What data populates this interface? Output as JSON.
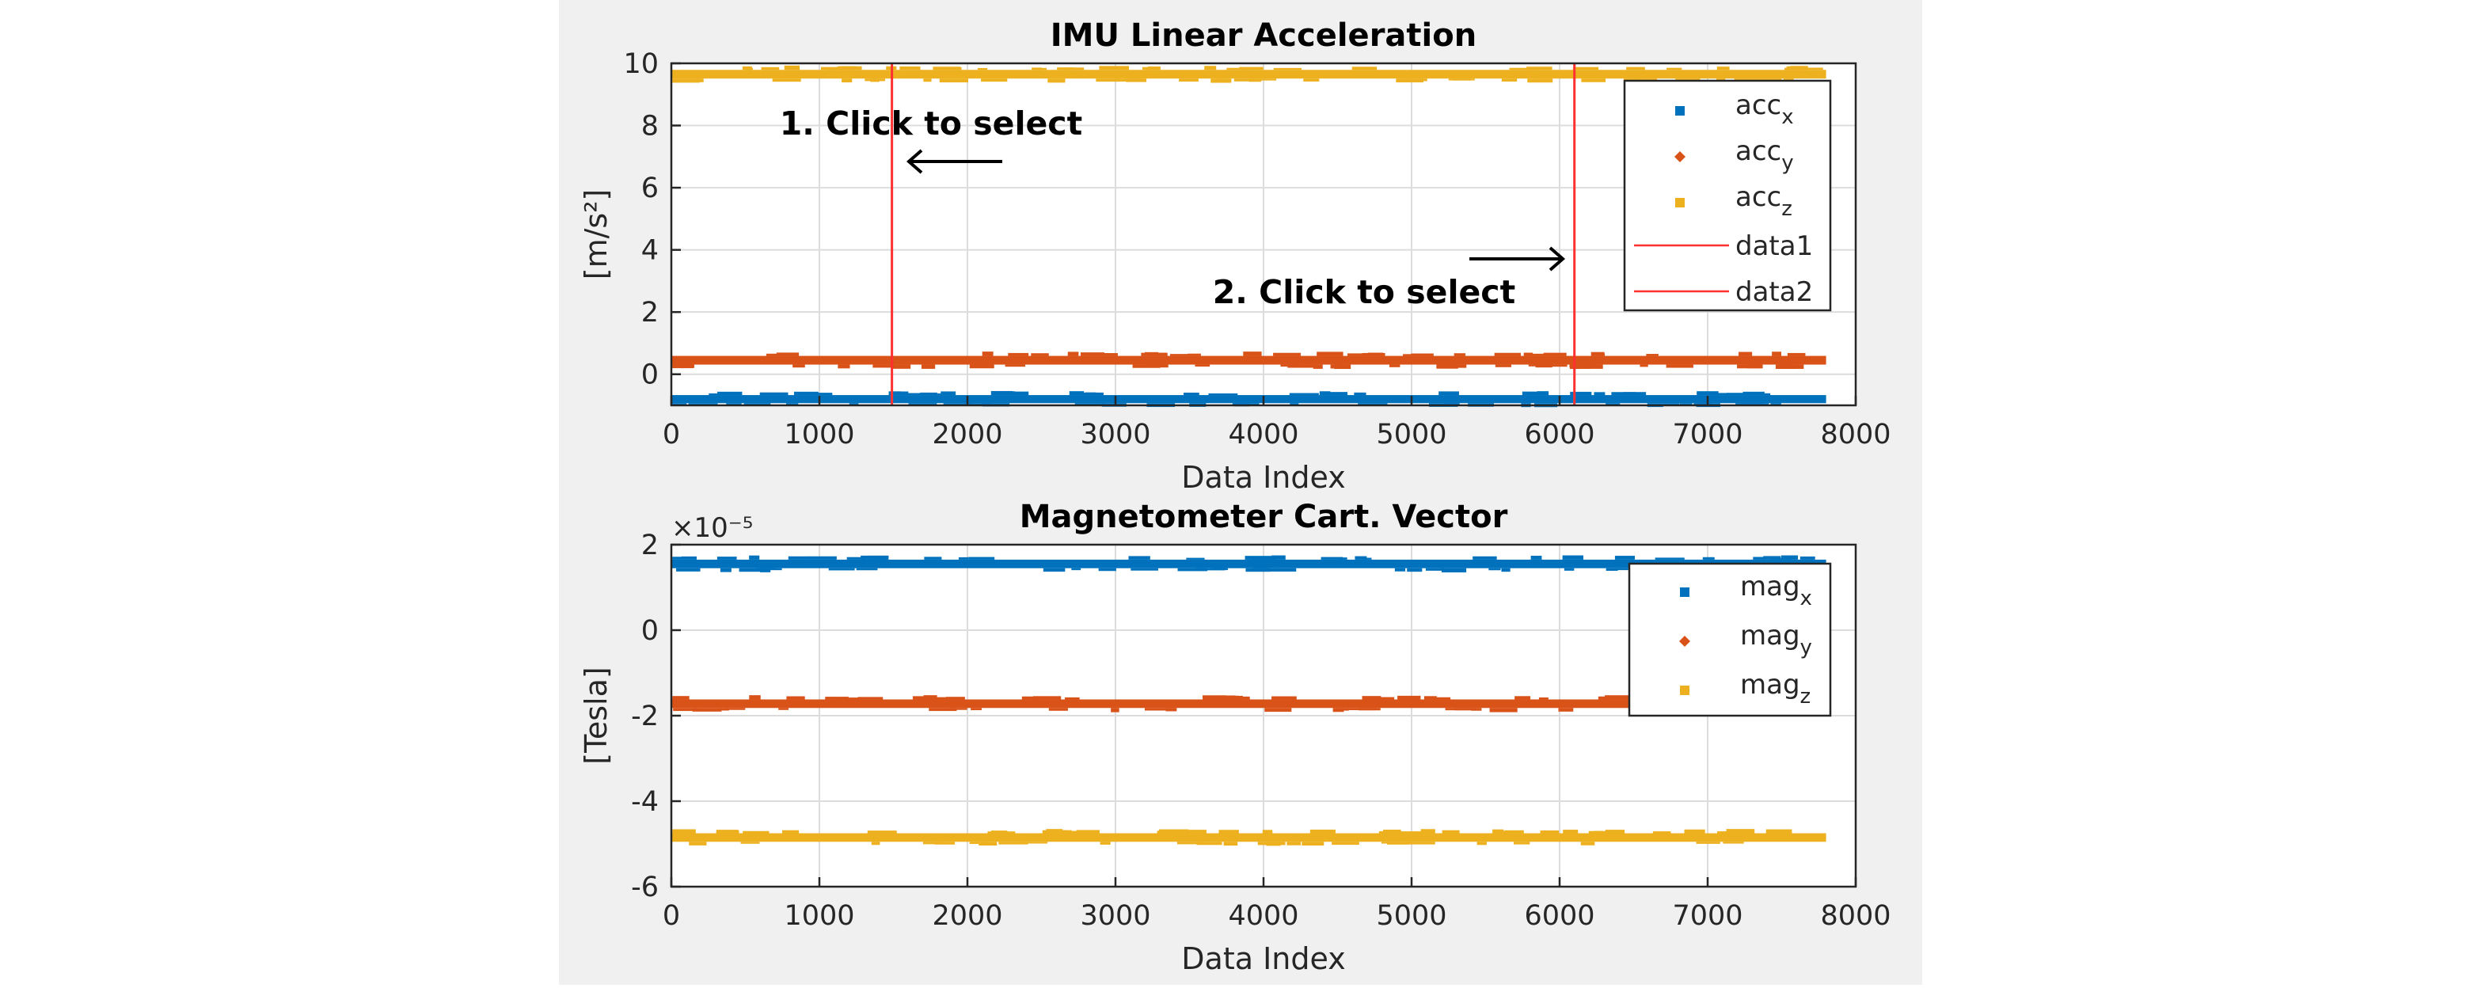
{
  "colors": {
    "series_1": "#0072bd",
    "series_2": "#d95319",
    "series_3": "#edb120",
    "cursor": "#ff3030",
    "figure_bg": "#f0f0f0",
    "grid": "#dcdcdc"
  },
  "annotations": {
    "step1": "1. Click to select",
    "step2": "2. Click to select"
  },
  "chart_data": [
    {
      "type": "scatter",
      "title": "IMU Linear Acceleration",
      "xlabel": "Data Index",
      "ylabel": "[m/s²]",
      "xlim": [
        0,
        8000
      ],
      "ylim": [
        -1,
        10
      ],
      "xticks": [
        0,
        1000,
        2000,
        3000,
        4000,
        5000,
        6000,
        7000,
        8000
      ],
      "yticks": [
        0,
        2,
        4,
        6,
        8,
        10
      ],
      "exponent_label": "",
      "grid": true,
      "legend_position": "top-right",
      "x_range": [
        0,
        7800
      ],
      "series": [
        {
          "name": "acc",
          "sub": "x",
          "marker": "square",
          "color": "#0072bd",
          "value": -0.8,
          "spread": 0.13
        },
        {
          "name": "acc",
          "sub": "y",
          "marker": "diamond",
          "color": "#d95319",
          "value": 0.45,
          "spread": 0.14
        },
        {
          "name": "acc",
          "sub": "z",
          "marker": "square",
          "color": "#edb120",
          "value": 9.65,
          "spread": 0.14
        }
      ],
      "lines": [
        {
          "name": "data1",
          "x": 1490,
          "color": "#ff3030"
        },
        {
          "name": "data2",
          "x": 6100,
          "color": "#ff3030"
        }
      ]
    },
    {
      "type": "scatter",
      "title": "Magnetometer Cart. Vector",
      "xlabel": "Data Index",
      "ylabel": "[Tesla]",
      "xlim": [
        0,
        8000
      ],
      "ylim": [
        -6,
        2
      ],
      "xticks": [
        0,
        1000,
        2000,
        3000,
        4000,
        5000,
        6000,
        7000,
        8000
      ],
      "yticks": [
        -6,
        -4,
        -2,
        0,
        2
      ],
      "exponent_label": "×10⁻⁵",
      "grid": true,
      "legend_position": "top-right",
      "x_range": [
        0,
        7800
      ],
      "series": [
        {
          "name": "mag",
          "sub": "x",
          "marker": "square",
          "color": "#0072bd",
          "value": 1.55,
          "spread": 0.1
        },
        {
          "name": "mag",
          "sub": "y",
          "marker": "diamond",
          "color": "#d95319",
          "value": -1.72,
          "spread": 0.1
        },
        {
          "name": "mag",
          "sub": "z",
          "marker": "square",
          "color": "#edb120",
          "value": -4.85,
          "spread": 0.1
        }
      ],
      "lines": []
    }
  ]
}
